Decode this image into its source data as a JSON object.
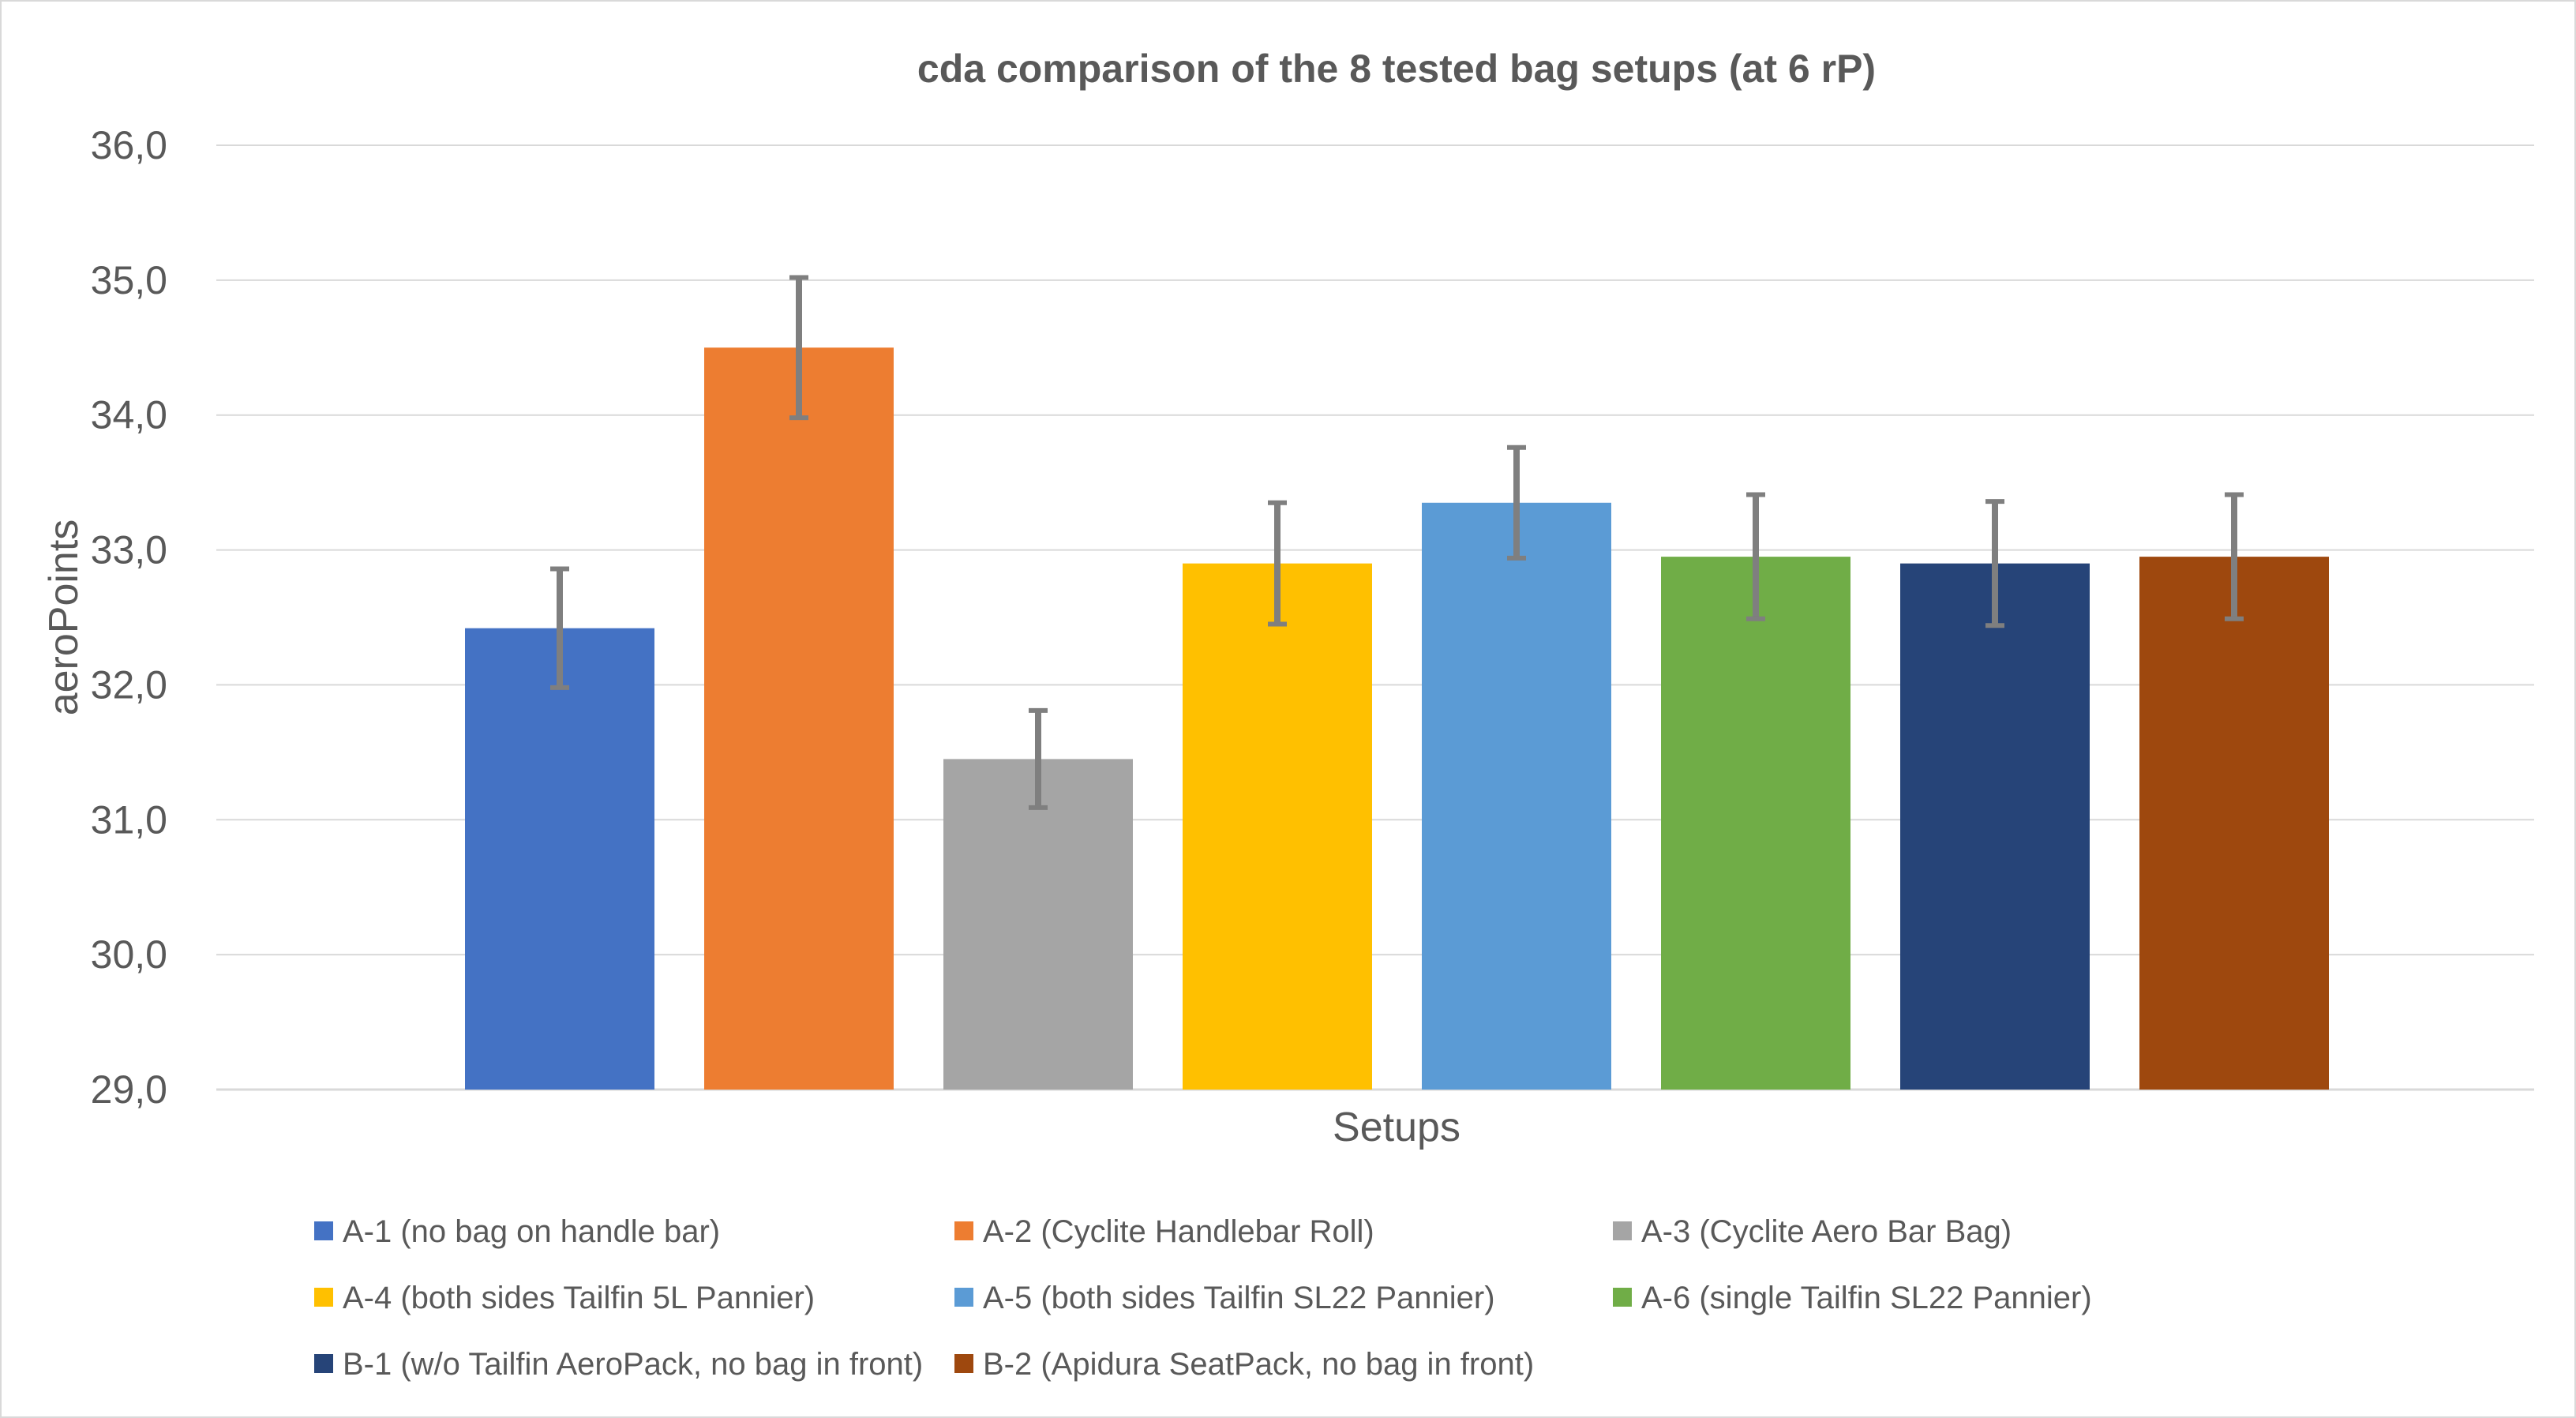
{
  "chart_data": {
    "type": "bar",
    "title": "cda comparison of the 8 tested bag setups (at 6 rP)",
    "xlabel": "Setups",
    "ylabel": "aeroPoints",
    "ylim": [
      29.0,
      36.0
    ],
    "y_ticks": [
      "29,0",
      "30,0",
      "31,0",
      "32,0",
      "33,0",
      "34,0",
      "35,0",
      "36,0"
    ],
    "grid": true,
    "legend_position": "bottom",
    "series": [
      {
        "name": "A-1 (no bag on handle bar)",
        "value": 32.42,
        "error": 0.44,
        "color": "#4472C4"
      },
      {
        "name": "A-2 (Cyclite Handlebar Roll)",
        "value": 34.5,
        "error": 0.52,
        "color": "#ED7D31"
      },
      {
        "name": "A-3 (Cyclite Aero Bar Bag)",
        "value": 31.45,
        "error": 0.36,
        "color": "#A5A5A5"
      },
      {
        "name": "A-4 (both sides Tailfin 5L Pannier)",
        "value": 32.9,
        "error": 0.45,
        "color": "#FFC000"
      },
      {
        "name": "A-5 (both sides Tailfin SL22 Pannier)",
        "value": 33.35,
        "error": 0.41,
        "color": "#5B9BD5"
      },
      {
        "name": "A-6 (single Tailfin SL22 Pannier)",
        "value": 32.95,
        "error": 0.46,
        "color": "#70AD47"
      },
      {
        "name": "B-1 (w/o Tailfin AeroPack, no bag in front)",
        "value": 32.9,
        "error": 0.46,
        "color": "#264478"
      },
      {
        "name": "B-2 (Apidura SeatPack, no bag in front)",
        "value": 32.95,
        "error": 0.46,
        "color": "#9E480E"
      }
    ],
    "error_bar_color": "#7F7F7F",
    "gridline_color": "#D9D9D9"
  }
}
